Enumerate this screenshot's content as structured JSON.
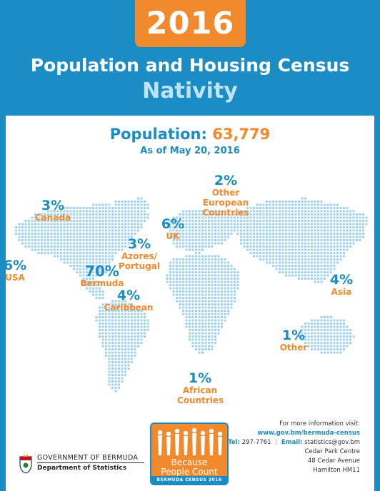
{
  "header": {
    "year": "2016",
    "title": "Population and Housing Census",
    "subtitle": "Nativity"
  },
  "population": {
    "label": "Population:",
    "value": "63,779",
    "date": "As of May 20, 2016"
  },
  "regions": [
    {
      "id": "canada",
      "pct": "3%",
      "name": "Canada"
    },
    {
      "id": "other-european",
      "pct": "2%",
      "name": "Other European Countries"
    },
    {
      "id": "uk",
      "pct": "6%",
      "name": "UK"
    },
    {
      "id": "azores",
      "pct": "3%",
      "name": "Azores/ Portugal"
    },
    {
      "id": "usa",
      "pct": "6%",
      "name": "USA"
    },
    {
      "id": "bermuda",
      "pct": "70%",
      "name": "Bermuda"
    },
    {
      "id": "caribbean",
      "pct": "4%",
      "name": "Caribbean"
    },
    {
      "id": "asia",
      "pct": "4%",
      "name": "Asia"
    },
    {
      "id": "other",
      "pct": "1%",
      "name": "Other"
    },
    {
      "id": "african",
      "pct": "1%",
      "name": "African Countries"
    }
  ],
  "footer": {
    "more_info": "For more information visit:",
    "url": "www.gov.bm/bermuda-census",
    "tel_label": "Tel:",
    "tel": "297-7761",
    "separator": "|",
    "email_label": "Email:",
    "email": "statistics@gov.bm",
    "address1": "Cedar Park Centre",
    "address2": "48 Cedar Avenue",
    "address3": "Hamilton HM11"
  },
  "logo": {
    "line1": "Because",
    "line2": "People Count",
    "strip": "BERMUDA CENSUS 2016"
  },
  "government": {
    "name": "GOVERNMENT OF BERMUDA",
    "department": "Department of Statistics"
  },
  "colors": {
    "brand_blue": "#1b8cc4",
    "accent_orange": "#f08a2c",
    "map_dots": "#9fd2ee"
  },
  "icons": {
    "map": "world-map-dotted",
    "crest": "bermuda-crest-icon",
    "people": "people-figures-icon"
  }
}
